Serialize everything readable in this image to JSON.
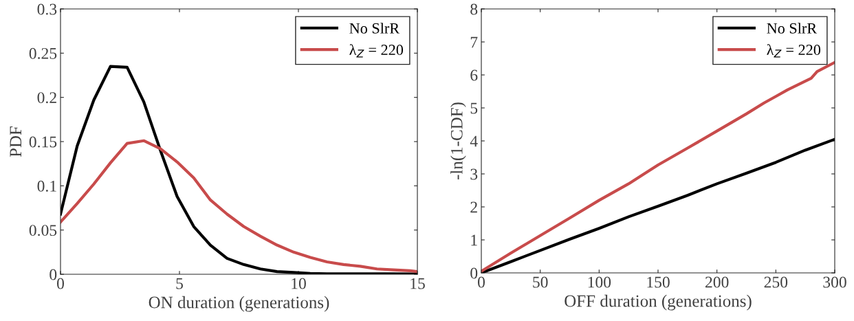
{
  "chart_data": [
    {
      "type": "line",
      "xlabel": "ON duration (generations)",
      "ylabel": "PDF",
      "x": [
        0,
        0.7,
        1.4,
        2.1,
        2.8,
        3.5,
        4.2,
        4.9,
        5.6,
        6.3,
        7.0,
        7.7,
        8.4,
        9.1,
        9.8,
        10.5,
        11.2,
        11.9,
        12.6,
        13.3,
        14.0,
        14.7,
        15
      ],
      "series": [
        {
          "name": "No SlrR",
          "color": "#000000",
          "values": [
            0.068,
            0.145,
            0.197,
            0.235,
            0.234,
            0.195,
            0.14,
            0.088,
            0.054,
            0.033,
            0.018,
            0.011,
            0.006,
            0.003,
            0.002,
            0.001,
            0.0005,
            0.0005,
            0.0005,
            0.0005,
            0.0005,
            0.0003,
            0.0003
          ]
        },
        {
          "name": "λ$_{Z}$ = 220",
          "color": "#c84b4b",
          "values": [
            0.059,
            0.08,
            0.102,
            0.126,
            0.148,
            0.151,
            0.142,
            0.127,
            0.109,
            0.084,
            0.068,
            0.054,
            0.043,
            0.033,
            0.025,
            0.019,
            0.014,
            0.011,
            0.009,
            0.006,
            0.005,
            0.004,
            0.003
          ]
        }
      ],
      "xlim": [
        0,
        15
      ],
      "xticks": [
        0,
        5,
        10,
        15
      ],
      "ylim": [
        0,
        0.3
      ],
      "yticks": [
        0,
        0.05,
        0.1,
        0.15,
        0.2,
        0.25,
        0.3
      ],
      "legend": "top right",
      "grid": false
    },
    {
      "type": "line",
      "xlabel": "OFF duration (generations)",
      "ylabel": "-ln(1-CDF)",
      "series": [
        {
          "name": "No SlrR",
          "color": "#000000",
          "x": [
            0,
            25,
            50,
            75,
            100,
            125,
            150,
            175,
            200,
            225,
            250,
            275,
            300
          ],
          "values": [
            0,
            0.34,
            0.68,
            1.02,
            1.35,
            1.7,
            2.02,
            2.35,
            2.7,
            3.02,
            3.35,
            3.72,
            4.05
          ]
        },
        {
          "name": "λ$_{Z}$ = 220",
          "color": "#c84b4b",
          "x": [
            0,
            25,
            50,
            75,
            100,
            125,
            150,
            175,
            200,
            225,
            240,
            250,
            260,
            280,
            285,
            300
          ],
          "values": [
            0.05,
            0.6,
            1.13,
            1.66,
            2.2,
            2.7,
            3.27,
            3.78,
            4.3,
            4.82,
            5.15,
            5.35,
            5.55,
            5.9,
            6.1,
            6.38
          ]
        }
      ],
      "xlim": [
        0,
        300
      ],
      "xticks": [
        0,
        50,
        100,
        150,
        200,
        250,
        300
      ],
      "ylim": [
        0,
        8
      ],
      "yticks": [
        0,
        1,
        2,
        3,
        4,
        5,
        6,
        7,
        8
      ],
      "legend": "top right",
      "grid": false
    }
  ]
}
